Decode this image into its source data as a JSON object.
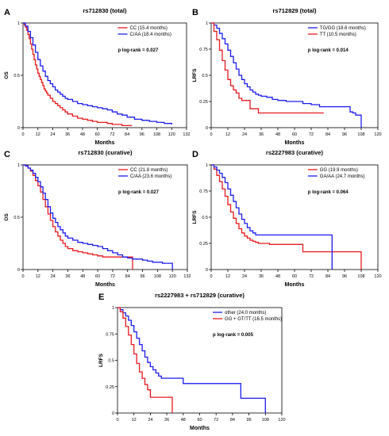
{
  "colors": {
    "red": "#e8191e",
    "blue": "#1c1cf0",
    "axis": "#000000"
  },
  "chart_data": [
    {
      "type": "line",
      "panel_label": "A",
      "title": "rs712830 (total)",
      "xlabel": "Months",
      "ylabel": "OS",
      "xlim": [
        0,
        132
      ],
      "ylim": [
        0,
        1
      ],
      "xticks": [
        "0",
        "12",
        "24",
        "36",
        "48",
        "60",
        "72",
        "84",
        "96",
        "108",
        "120",
        "132"
      ],
      "yticks": [
        "0",
        "0.5",
        "1"
      ],
      "legend_position": "top-right",
      "annotation": "p log-rank = 0.027",
      "series": [
        {
          "name": "CC (15.4 months)",
          "color": "red",
          "x": [
            0,
            1,
            2,
            3,
            4,
            5,
            6,
            7,
            8,
            9,
            10,
            11,
            12,
            13,
            14,
            15,
            16,
            17,
            18,
            19,
            20,
            22,
            24,
            26,
            28,
            30,
            32,
            34,
            36,
            40,
            44,
            48,
            52,
            56,
            60,
            64,
            68,
            72,
            76,
            80,
            84,
            88
          ],
          "y": [
            1.0,
            0.98,
            0.96,
            0.93,
            0.89,
            0.85,
            0.8,
            0.75,
            0.7,
            0.65,
            0.6,
            0.56,
            0.52,
            0.49,
            0.46,
            0.43,
            0.4,
            0.37,
            0.35,
            0.33,
            0.31,
            0.28,
            0.25,
            0.23,
            0.21,
            0.19,
            0.17,
            0.15,
            0.13,
            0.11,
            0.09,
            0.08,
            0.07,
            0.06,
            0.05,
            0.05,
            0.04,
            0.03,
            0.03,
            0.02,
            0.02,
            0.02
          ]
        },
        {
          "name": "C/AA (18.4 months)",
          "color": "blue",
          "x": [
            0,
            2,
            4,
            6,
            8,
            10,
            12,
            14,
            16,
            18,
            20,
            22,
            24,
            26,
            28,
            30,
            32,
            34,
            36,
            40,
            44,
            48,
            52,
            56,
            60,
            64,
            68,
            72,
            76,
            80,
            84,
            90,
            96,
            102,
            108,
            114,
            120
          ],
          "y": [
            1.0,
            0.97,
            0.92,
            0.86,
            0.79,
            0.72,
            0.65,
            0.59,
            0.54,
            0.49,
            0.45,
            0.42,
            0.39,
            0.36,
            0.34,
            0.32,
            0.3,
            0.28,
            0.27,
            0.25,
            0.23,
            0.22,
            0.21,
            0.2,
            0.19,
            0.18,
            0.17,
            0.15,
            0.13,
            0.12,
            0.1,
            0.08,
            0.07,
            0.06,
            0.05,
            0.04,
            0.03
          ]
        }
      ]
    },
    {
      "type": "line",
      "panel_label": "B",
      "title": "rs712829 (total)",
      "xlabel": "Months",
      "ylabel": "LRFS",
      "xlim": [
        0,
        120
      ],
      "ylim": [
        0,
        1
      ],
      "xticks": [
        "0",
        "12",
        "24",
        "36",
        "48",
        "60",
        "72",
        "84",
        "96",
        "108",
        "120"
      ],
      "yticks": [
        "0",
        "0.25",
        "0.5",
        "0.75",
        "1"
      ],
      "legend_position": "top-right",
      "annotation": "p log-rank = 0.014",
      "series": [
        {
          "name": "TG/GG (18.6 months)",
          "color": "blue",
          "x": [
            0,
            2,
            4,
            6,
            8,
            10,
            12,
            14,
            16,
            18,
            20,
            22,
            24,
            26,
            28,
            30,
            32,
            34,
            36,
            40,
            44,
            48,
            54,
            60,
            66,
            72,
            78,
            84,
            90,
            96,
            100,
            102,
            104,
            106,
            108
          ],
          "y": [
            1.0,
            0.98,
            0.95,
            0.9,
            0.85,
            0.8,
            0.74,
            0.68,
            0.62,
            0.56,
            0.5,
            0.46,
            0.42,
            0.39,
            0.36,
            0.34,
            0.32,
            0.31,
            0.3,
            0.29,
            0.27,
            0.26,
            0.25,
            0.25,
            0.23,
            0.22,
            0.2,
            0.2,
            0.2,
            0.2,
            0.15,
            0.14,
            0.12,
            0.12,
            0.0
          ]
        },
        {
          "name": "TT (10.5 months)",
          "color": "red",
          "x": [
            0,
            2,
            4,
            6,
            8,
            10,
            12,
            14,
            16,
            18,
            20,
            22,
            24,
            26,
            28,
            30,
            32,
            34,
            36,
            40,
            48,
            60,
            72,
            81
          ],
          "y": [
            1.0,
            0.92,
            0.84,
            0.74,
            0.64,
            0.55,
            0.46,
            0.4,
            0.36,
            0.33,
            0.28,
            0.26,
            0.26,
            0.26,
            0.18,
            0.18,
            0.18,
            0.14,
            0.14,
            0.14,
            0.14,
            0.14,
            0.14,
            0.14
          ]
        }
      ]
    },
    {
      "type": "line",
      "panel_label": "C",
      "title": "rs712830 (curative)",
      "xlabel": "Months",
      "ylabel": "OS",
      "xlim": [
        0,
        132
      ],
      "ylim": [
        0,
        1
      ],
      "xticks": [
        "0",
        "12",
        "24",
        "36",
        "48",
        "60",
        "72",
        "84",
        "96",
        "108",
        "120",
        "132"
      ],
      "yticks": [
        "0",
        "0.5",
        "1"
      ],
      "legend_position": "top-right",
      "annotation": "p log-rank = 0.027",
      "series": [
        {
          "name": "CC (21.8 months)",
          "color": "red",
          "x": [
            0,
            2,
            4,
            6,
            8,
            10,
            12,
            14,
            16,
            18,
            20,
            22,
            24,
            26,
            28,
            30,
            32,
            34,
            36,
            40,
            44,
            48,
            52,
            56,
            60,
            64,
            68,
            72,
            76,
            80,
            84,
            88
          ],
          "y": [
            1.0,
            0.99,
            0.97,
            0.94,
            0.9,
            0.85,
            0.8,
            0.74,
            0.67,
            0.6,
            0.53,
            0.47,
            0.41,
            0.36,
            0.32,
            0.28,
            0.25,
            0.22,
            0.2,
            0.18,
            0.17,
            0.16,
            0.15,
            0.14,
            0.13,
            0.12,
            0.12,
            0.12,
            0.12,
            0.12,
            0.12,
            0.0
          ]
        },
        {
          "name": "C/AA (23.6 months)",
          "color": "blue",
          "x": [
            0,
            2,
            4,
            6,
            8,
            10,
            12,
            14,
            16,
            18,
            20,
            22,
            24,
            26,
            28,
            30,
            32,
            34,
            36,
            40,
            44,
            48,
            52,
            56,
            60,
            64,
            68,
            72,
            76,
            80,
            84,
            88,
            92,
            96,
            100,
            104,
            108,
            112,
            116,
            120
          ],
          "y": [
            1.0,
            0.99,
            0.97,
            0.95,
            0.92,
            0.88,
            0.84,
            0.79,
            0.73,
            0.67,
            0.6,
            0.54,
            0.49,
            0.45,
            0.41,
            0.38,
            0.35,
            0.32,
            0.3,
            0.28,
            0.26,
            0.25,
            0.24,
            0.23,
            0.22,
            0.2,
            0.18,
            0.16,
            0.14,
            0.12,
            0.11,
            0.1,
            0.1,
            0.09,
            0.08,
            0.07,
            0.07,
            0.06,
            0.06,
            0.0
          ]
        }
      ]
    },
    {
      "type": "line",
      "panel_label": "D",
      "title": "rs2227983 (curative)",
      "xlabel": "Months",
      "ylabel": "LRFS",
      "xlim": [
        0,
        120
      ],
      "ylim": [
        0,
        1
      ],
      "xticks": [
        "0",
        "12",
        "24",
        "36",
        "48",
        "60",
        "72",
        "84",
        "96",
        "108",
        "120"
      ],
      "yticks": [
        "0",
        "0.25",
        "0.5",
        "0.75",
        "1"
      ],
      "legend_position": "top-right",
      "annotation": "p log-rank = 0.064",
      "series": [
        {
          "name": "GG (19.9 months)",
          "color": "red",
          "x": [
            0,
            2,
            4,
            6,
            8,
            10,
            12,
            14,
            16,
            18,
            20,
            22,
            24,
            26,
            28,
            30,
            32,
            34,
            36,
            42,
            48,
            54,
            60,
            66,
            72,
            78,
            84,
            90,
            96,
            102,
            108
          ],
          "y": [
            1.0,
            0.96,
            0.9,
            0.84,
            0.77,
            0.7,
            0.62,
            0.55,
            0.49,
            0.44,
            0.39,
            0.35,
            0.32,
            0.3,
            0.28,
            0.27,
            0.26,
            0.25,
            0.25,
            0.24,
            0.24,
            0.24,
            0.24,
            0.17,
            0.17,
            0.17,
            0.17,
            0.17,
            0.17,
            0.17,
            0.0
          ]
        },
        {
          "name": "GA/AA (24.7 months)",
          "color": "blue",
          "x": [
            0,
            2,
            4,
            6,
            8,
            10,
            12,
            14,
            16,
            18,
            20,
            22,
            24,
            26,
            28,
            30,
            32,
            34,
            36,
            42,
            48,
            54,
            60,
            66,
            72,
            78,
            84,
            87
          ],
          "y": [
            1.0,
            0.98,
            0.95,
            0.92,
            0.88,
            0.83,
            0.77,
            0.71,
            0.65,
            0.59,
            0.53,
            0.48,
            0.44,
            0.4,
            0.37,
            0.35,
            0.33,
            0.33,
            0.33,
            0.33,
            0.33,
            0.33,
            0.33,
            0.33,
            0.33,
            0.33,
            0.33,
            0.0
          ]
        }
      ]
    },
    {
      "type": "line",
      "panel_label": "E",
      "title": "rs2227983 + rs712829 (curative)",
      "xlabel": "Months",
      "ylabel": "LRFS",
      "xlim": [
        0,
        120
      ],
      "ylim": [
        0,
        1
      ],
      "xticks": [
        "0",
        "12",
        "24",
        "36",
        "48",
        "60",
        "72",
        "84",
        "96",
        "108",
        "120"
      ],
      "yticks": [
        "0",
        "0.25",
        "0.5",
        "0.75",
        "1"
      ],
      "legend_position": "top-right",
      "annotation": "p log-rank = 0.005",
      "series": [
        {
          "name": "other (24.0 months)",
          "color": "blue",
          "x": [
            0,
            2,
            4,
            6,
            8,
            10,
            12,
            14,
            16,
            18,
            20,
            22,
            24,
            26,
            28,
            30,
            32,
            34,
            36,
            42,
            48,
            54,
            60,
            66,
            72,
            78,
            84,
            90,
            96,
            100,
            108
          ],
          "y": [
            1.0,
            0.98,
            0.95,
            0.92,
            0.88,
            0.83,
            0.77,
            0.71,
            0.65,
            0.59,
            0.53,
            0.48,
            0.44,
            0.41,
            0.38,
            0.35,
            0.33,
            0.33,
            0.33,
            0.33,
            0.28,
            0.28,
            0.28,
            0.28,
            0.28,
            0.28,
            0.28,
            0.14,
            0.14,
            0.14,
            0.0
          ]
        },
        {
          "name": "GG + GT/TT (16.5 months)",
          "color": "red",
          "x": [
            0,
            2,
            4,
            6,
            8,
            10,
            12,
            14,
            16,
            18,
            20,
            22,
            24,
            26,
            28,
            30,
            32,
            34,
            36,
            38,
            40
          ],
          "y": [
            1.0,
            0.96,
            0.9,
            0.82,
            0.74,
            0.65,
            0.56,
            0.47,
            0.39,
            0.33,
            0.27,
            0.22,
            0.15,
            0.15,
            0.15,
            0.15,
            0.15,
            0.15,
            0.15,
            0.15,
            0.0
          ]
        }
      ]
    }
  ]
}
